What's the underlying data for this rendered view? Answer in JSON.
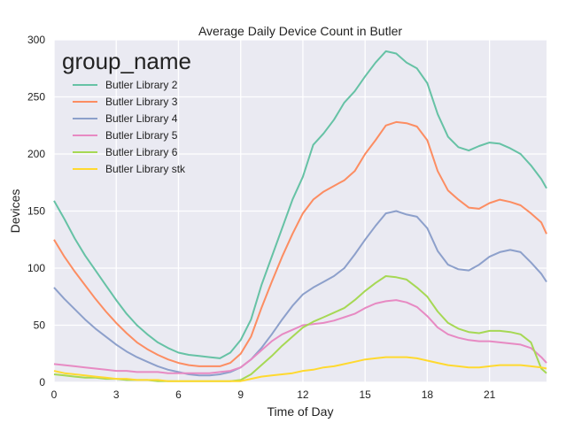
{
  "chart_data": {
    "type": "line",
    "title": "Average Daily Device Count in Butler",
    "xlabel": "Time of Day",
    "ylabel": "Devices",
    "xlim": [
      0,
      23.75
    ],
    "ylim": [
      0,
      300
    ],
    "xticks": [
      0,
      3,
      6,
      9,
      12,
      15,
      18,
      21
    ],
    "yticks": [
      0,
      50,
      100,
      150,
      200,
      250,
      300
    ],
    "grid": true,
    "legend": {
      "title": "group_name",
      "placement": "top-left"
    },
    "series": [
      {
        "name": "Butler Library 2",
        "color": "#66c2a5",
        "points": [
          [
            0,
            159
          ],
          [
            0.5,
            143
          ],
          [
            1,
            126
          ],
          [
            1.5,
            111
          ],
          [
            2,
            98
          ],
          [
            2.5,
            85
          ],
          [
            3,
            72
          ],
          [
            3.5,
            60
          ],
          [
            4,
            50
          ],
          [
            4.5,
            42
          ],
          [
            5,
            35
          ],
          [
            5.5,
            30
          ],
          [
            6,
            26
          ],
          [
            6.5,
            24
          ],
          [
            7,
            23
          ],
          [
            7.5,
            22
          ],
          [
            8,
            21
          ],
          [
            8.5,
            26
          ],
          [
            9,
            37
          ],
          [
            9.5,
            55
          ],
          [
            10,
            85
          ],
          [
            10.5,
            110
          ],
          [
            11,
            135
          ],
          [
            11.5,
            160
          ],
          [
            12,
            180
          ],
          [
            12.5,
            208
          ],
          [
            13,
            218
          ],
          [
            13.5,
            230
          ],
          [
            14,
            245
          ],
          [
            14.5,
            255
          ],
          [
            15,
            268
          ],
          [
            15.5,
            280
          ],
          [
            16,
            290
          ],
          [
            16.5,
            288
          ],
          [
            17,
            280
          ],
          [
            17.5,
            275
          ],
          [
            18,
            262
          ],
          [
            18.5,
            235
          ],
          [
            19,
            215
          ],
          [
            19.5,
            206
          ],
          [
            20,
            203
          ],
          [
            20.5,
            207
          ],
          [
            21,
            210
          ],
          [
            21.5,
            209
          ],
          [
            22,
            205
          ],
          [
            22.5,
            200
          ],
          [
            23,
            190
          ],
          [
            23.5,
            178
          ],
          [
            23.75,
            170
          ]
        ]
      },
      {
        "name": "Butler Library 3",
        "color": "#fc8d62",
        "points": [
          [
            0,
            125
          ],
          [
            0.5,
            110
          ],
          [
            1,
            97
          ],
          [
            1.5,
            85
          ],
          [
            2,
            73
          ],
          [
            2.5,
            62
          ],
          [
            3,
            52
          ],
          [
            3.5,
            43
          ],
          [
            4,
            35
          ],
          [
            4.5,
            29
          ],
          [
            5,
            24
          ],
          [
            5.5,
            20
          ],
          [
            6,
            17
          ],
          [
            6.5,
            15
          ],
          [
            7,
            14
          ],
          [
            7.5,
            14
          ],
          [
            8,
            14
          ],
          [
            8.5,
            17
          ],
          [
            9,
            25
          ],
          [
            9.5,
            40
          ],
          [
            10,
            65
          ],
          [
            10.5,
            88
          ],
          [
            11,
            110
          ],
          [
            11.5,
            130
          ],
          [
            12,
            148
          ],
          [
            12.5,
            160
          ],
          [
            13,
            167
          ],
          [
            13.5,
            172
          ],
          [
            14,
            177
          ],
          [
            14.5,
            185
          ],
          [
            15,
            200
          ],
          [
            15.5,
            212
          ],
          [
            16,
            225
          ],
          [
            16.5,
            228
          ],
          [
            17,
            227
          ],
          [
            17.5,
            224
          ],
          [
            18,
            212
          ],
          [
            18.5,
            185
          ],
          [
            19,
            168
          ],
          [
            19.5,
            160
          ],
          [
            20,
            153
          ],
          [
            20.5,
            152
          ],
          [
            21,
            157
          ],
          [
            21.5,
            160
          ],
          [
            22,
            158
          ],
          [
            22.5,
            155
          ],
          [
            23,
            148
          ],
          [
            23.5,
            140
          ],
          [
            23.75,
            130
          ]
        ]
      },
      {
        "name": "Butler Library 4",
        "color": "#8da0cb",
        "points": [
          [
            0,
            83
          ],
          [
            0.5,
            73
          ],
          [
            1,
            64
          ],
          [
            1.5,
            55
          ],
          [
            2,
            47
          ],
          [
            2.5,
            40
          ],
          [
            3,
            33
          ],
          [
            3.5,
            27
          ],
          [
            4,
            22
          ],
          [
            4.5,
            18
          ],
          [
            5,
            14
          ],
          [
            5.5,
            11
          ],
          [
            6,
            9
          ],
          [
            6.5,
            7
          ],
          [
            7,
            6
          ],
          [
            7.5,
            6
          ],
          [
            8,
            7
          ],
          [
            8.5,
            9
          ],
          [
            9,
            13
          ],
          [
            9.5,
            20
          ],
          [
            10,
            30
          ],
          [
            10.5,
            42
          ],
          [
            11,
            55
          ],
          [
            11.5,
            67
          ],
          [
            12,
            77
          ],
          [
            12.5,
            83
          ],
          [
            13,
            88
          ],
          [
            13.5,
            93
          ],
          [
            14,
            100
          ],
          [
            14.5,
            112
          ],
          [
            15,
            125
          ],
          [
            15.5,
            137
          ],
          [
            16,
            148
          ],
          [
            16.5,
            150
          ],
          [
            17,
            147
          ],
          [
            17.5,
            145
          ],
          [
            18,
            135
          ],
          [
            18.5,
            115
          ],
          [
            19,
            103
          ],
          [
            19.5,
            99
          ],
          [
            20,
            98
          ],
          [
            20.5,
            103
          ],
          [
            21,
            110
          ],
          [
            21.5,
            114
          ],
          [
            22,
            116
          ],
          [
            22.5,
            114
          ],
          [
            23,
            105
          ],
          [
            23.5,
            95
          ],
          [
            23.75,
            88
          ]
        ]
      },
      {
        "name": "Butler Library 5",
        "color": "#e78ac3",
        "points": [
          [
            0,
            16
          ],
          [
            0.5,
            15
          ],
          [
            1,
            14
          ],
          [
            1.5,
            13
          ],
          [
            2,
            12
          ],
          [
            2.5,
            11
          ],
          [
            3,
            10
          ],
          [
            3.5,
            10
          ],
          [
            4,
            9
          ],
          [
            4.5,
            9
          ],
          [
            5,
            9
          ],
          [
            5.5,
            8
          ],
          [
            6,
            8
          ],
          [
            6.5,
            8
          ],
          [
            7,
            8
          ],
          [
            7.5,
            8
          ],
          [
            8,
            9
          ],
          [
            8.5,
            10
          ],
          [
            9,
            13
          ],
          [
            9.5,
            20
          ],
          [
            10,
            28
          ],
          [
            10.5,
            36
          ],
          [
            11,
            42
          ],
          [
            11.5,
            46
          ],
          [
            12,
            50
          ],
          [
            12.5,
            51
          ],
          [
            13,
            52
          ],
          [
            13.5,
            54
          ],
          [
            14,
            57
          ],
          [
            14.5,
            60
          ],
          [
            15,
            65
          ],
          [
            15.5,
            69
          ],
          [
            16,
            71
          ],
          [
            16.5,
            72
          ],
          [
            17,
            70
          ],
          [
            17.5,
            66
          ],
          [
            18,
            58
          ],
          [
            18.5,
            48
          ],
          [
            19,
            42
          ],
          [
            19.5,
            39
          ],
          [
            20,
            37
          ],
          [
            20.5,
            36
          ],
          [
            21,
            36
          ],
          [
            21.5,
            35
          ],
          [
            22,
            34
          ],
          [
            22.5,
            33
          ],
          [
            23,
            30
          ],
          [
            23.5,
            22
          ],
          [
            23.75,
            17
          ]
        ]
      },
      {
        "name": "Butler Library 6",
        "color": "#a6d854",
        "points": [
          [
            0,
            7
          ],
          [
            0.5,
            6
          ],
          [
            1,
            5
          ],
          [
            1.5,
            4
          ],
          [
            2,
            4
          ],
          [
            2.5,
            3
          ],
          [
            3,
            3
          ],
          [
            3.5,
            2
          ],
          [
            4,
            2
          ],
          [
            4.5,
            2
          ],
          [
            5,
            1
          ],
          [
            5.5,
            1
          ],
          [
            6,
            1
          ],
          [
            6.5,
            1
          ],
          [
            7,
            1
          ],
          [
            7.5,
            1
          ],
          [
            8,
            1
          ],
          [
            8.5,
            1
          ],
          [
            9,
            2
          ],
          [
            9.5,
            7
          ],
          [
            10,
            15
          ],
          [
            10.5,
            23
          ],
          [
            11,
            32
          ],
          [
            11.5,
            40
          ],
          [
            12,
            48
          ],
          [
            12.5,
            53
          ],
          [
            13,
            57
          ],
          [
            13.5,
            61
          ],
          [
            14,
            65
          ],
          [
            14.5,
            72
          ],
          [
            15,
            80
          ],
          [
            15.5,
            87
          ],
          [
            16,
            93
          ],
          [
            16.5,
            92
          ],
          [
            17,
            90
          ],
          [
            17.5,
            83
          ],
          [
            18,
            75
          ],
          [
            18.5,
            62
          ],
          [
            19,
            52
          ],
          [
            19.5,
            47
          ],
          [
            20,
            44
          ],
          [
            20.5,
            43
          ],
          [
            21,
            45
          ],
          [
            21.5,
            45
          ],
          [
            22,
            44
          ],
          [
            22.5,
            42
          ],
          [
            23,
            35
          ],
          [
            23.5,
            12
          ],
          [
            23.75,
            8
          ]
        ]
      },
      {
        "name": "Butler Library stk",
        "color": "#ffd92f",
        "points": [
          [
            0,
            10
          ],
          [
            0.5,
            8
          ],
          [
            1,
            7
          ],
          [
            1.5,
            6
          ],
          [
            2,
            5
          ],
          [
            2.5,
            4
          ],
          [
            3,
            3
          ],
          [
            3.5,
            3
          ],
          [
            4,
            2
          ],
          [
            4.5,
            2
          ],
          [
            5,
            2
          ],
          [
            5.5,
            1
          ],
          [
            6,
            1
          ],
          [
            6.5,
            1
          ],
          [
            7,
            1
          ],
          [
            7.5,
            1
          ],
          [
            8,
            1
          ],
          [
            8.5,
            1
          ],
          [
            9,
            1
          ],
          [
            9.5,
            3
          ],
          [
            10,
            5
          ],
          [
            10.5,
            6
          ],
          [
            11,
            7
          ],
          [
            11.5,
            8
          ],
          [
            12,
            10
          ],
          [
            12.5,
            11
          ],
          [
            13,
            13
          ],
          [
            13.5,
            14
          ],
          [
            14,
            16
          ],
          [
            14.5,
            18
          ],
          [
            15,
            20
          ],
          [
            15.5,
            21
          ],
          [
            16,
            22
          ],
          [
            16.5,
            22
          ],
          [
            17,
            22
          ],
          [
            17.5,
            21
          ],
          [
            18,
            19
          ],
          [
            18.5,
            17
          ],
          [
            19,
            15
          ],
          [
            19.5,
            14
          ],
          [
            20,
            13
          ],
          [
            20.5,
            13
          ],
          [
            21,
            14
          ],
          [
            21.5,
            15
          ],
          [
            22,
            15
          ],
          [
            22.5,
            15
          ],
          [
            23,
            14
          ],
          [
            23.5,
            13
          ],
          [
            23.75,
            12
          ]
        ]
      }
    ]
  }
}
